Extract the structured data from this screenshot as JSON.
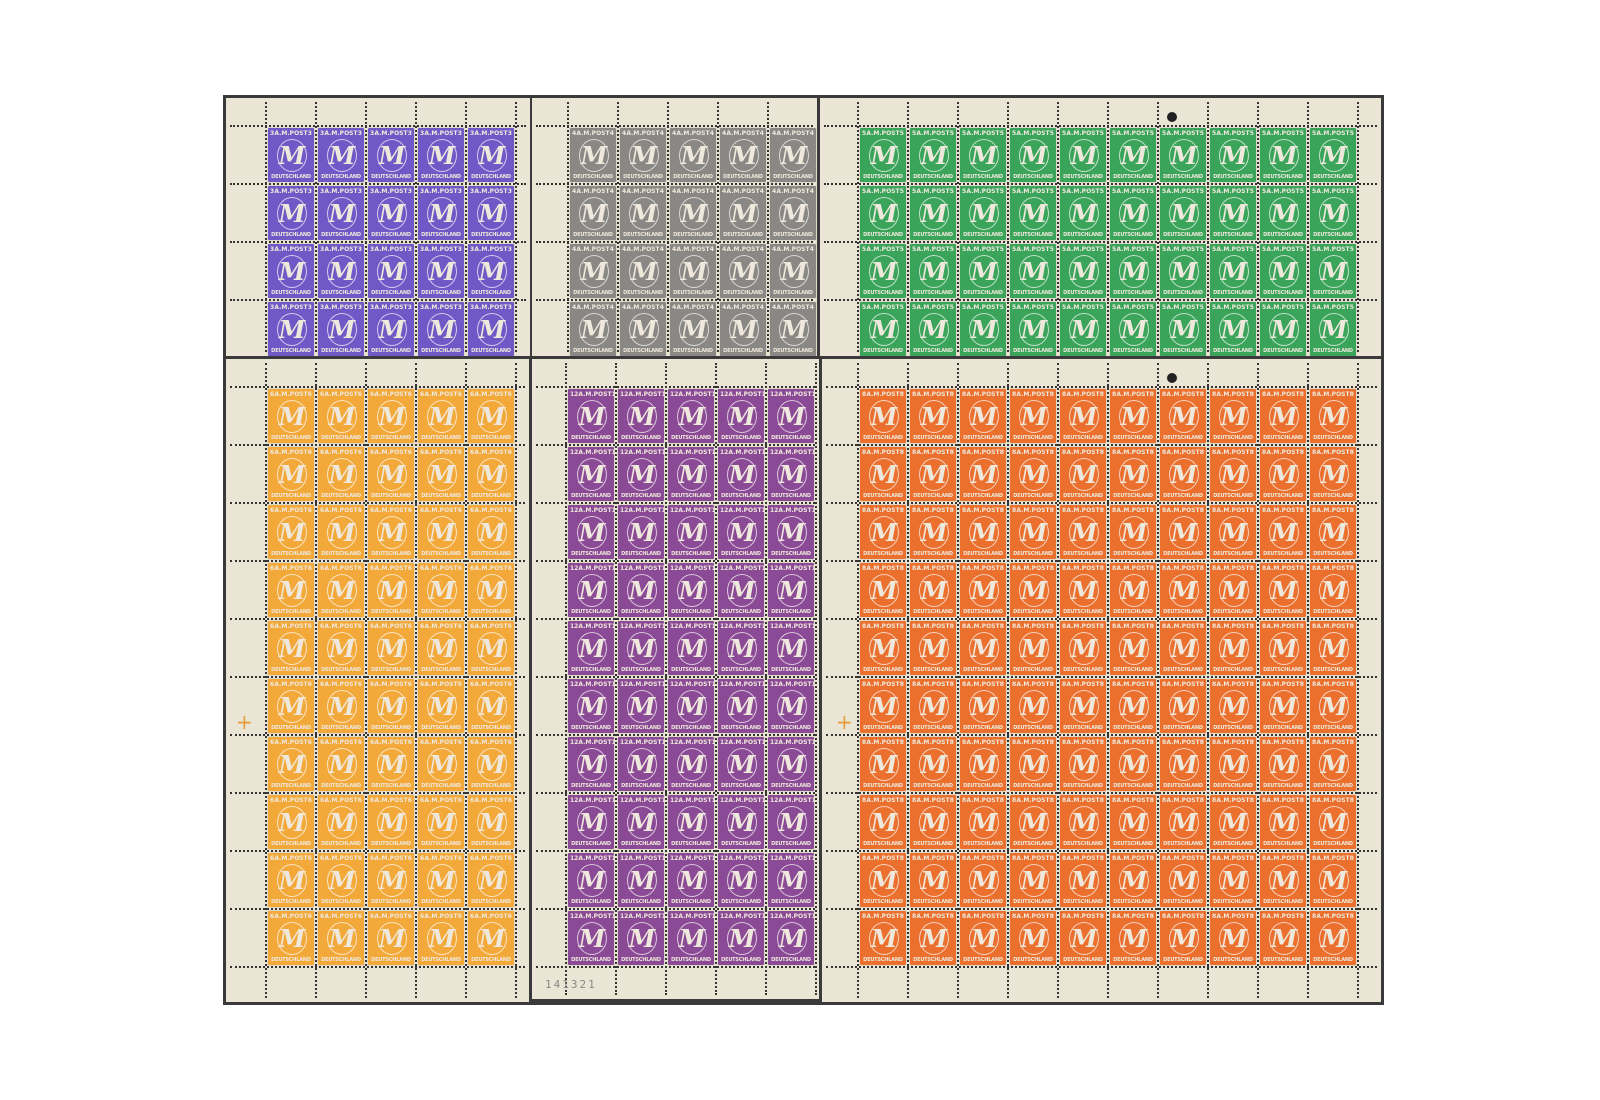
{
  "stamp_text": {
    "top": "A.M.POST",
    "bottom": "DEUTSCHLAND",
    "letter": "M"
  },
  "sheets": [
    {
      "id": "violet-3",
      "value": "3",
      "color": "#7059c7",
      "cols": 5,
      "rows": 4
    },
    {
      "id": "grey-4",
      "value": "4",
      "color": "#8a8884",
      "cols": 5,
      "rows": 4
    },
    {
      "id": "green-5",
      "value": "5",
      "color": "#3aa45a",
      "cols": 10,
      "rows": 4
    },
    {
      "id": "yellow-6",
      "value": "6",
      "color": "#f2a93a",
      "cols": 5,
      "rows": 10
    },
    {
      "id": "purple-12",
      "value": "12",
      "color": "#8b4a95",
      "cols": 5,
      "rows": 10
    },
    {
      "id": "orange-8",
      "value": "8",
      "color": "#eb6f2d",
      "cols": 10,
      "rows": 10
    }
  ],
  "sheet_number": "141321"
}
